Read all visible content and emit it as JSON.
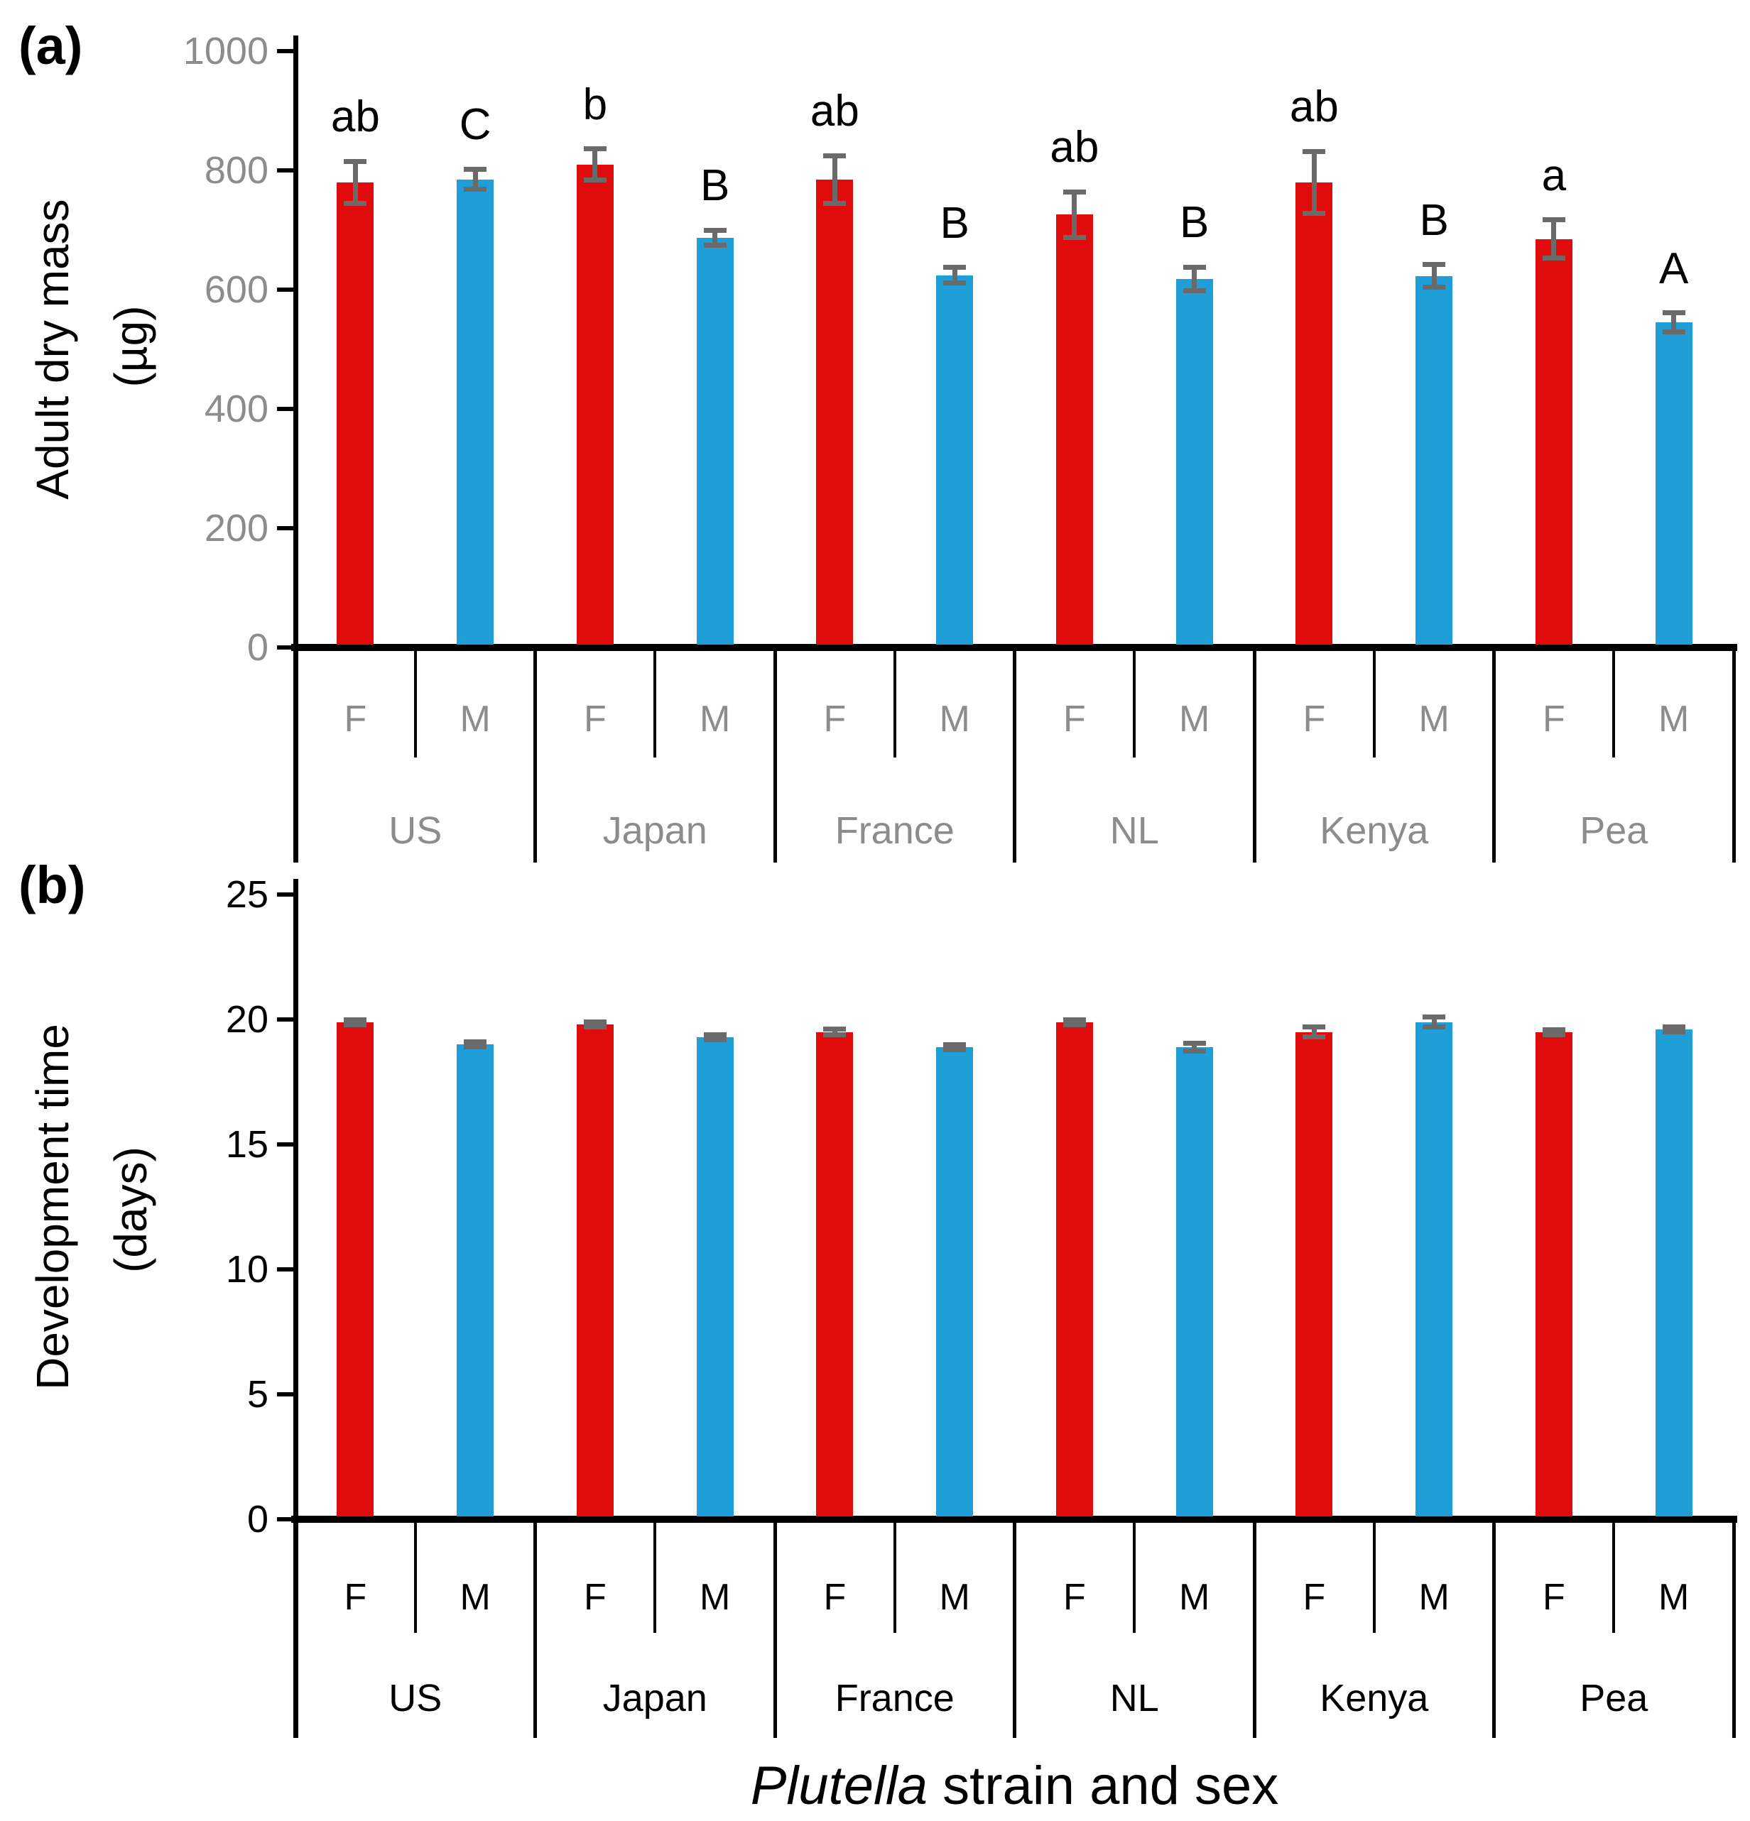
{
  "figure": {
    "x_axis_title": {
      "italic_part": "Plutella",
      "regular_part": " strain and sex"
    },
    "sex_labels": [
      "F",
      "M"
    ],
    "strains": [
      "US",
      "Japan",
      "France",
      "NL",
      "Kenya",
      "Pea"
    ],
    "colors": {
      "female_bar": "#e00c0c",
      "male_bar": "#1f9ed8",
      "error_bar": "#6a6a6a",
      "panel_a_text": "#8c8c8c",
      "panel_b_text": "#000000",
      "axis": "#000000"
    }
  },
  "chart_data": [
    {
      "id": "a",
      "type": "bar",
      "panel_label": "(a)",
      "ylabel_lines": [
        "Adult dry mass",
        "(µg)"
      ],
      "ylim": [
        0,
        1000
      ],
      "yticks": [
        0,
        200,
        400,
        600,
        800,
        1000
      ],
      "grid": false,
      "legend": "none",
      "groups": [
        "US",
        "Japan",
        "France",
        "NL",
        "Kenya",
        "Pea"
      ],
      "bars": [
        {
          "strain": "US",
          "sex": "F",
          "value": 780,
          "error": 35,
          "letter": "ab"
        },
        {
          "strain": "US",
          "sex": "M",
          "value": 785,
          "error": 17,
          "letter": "C"
        },
        {
          "strain": "Japan",
          "sex": "F",
          "value": 810,
          "error": 26,
          "letter": "b"
        },
        {
          "strain": "Japan",
          "sex": "M",
          "value": 687,
          "error": 13,
          "letter": "B"
        },
        {
          "strain": "France",
          "sex": "F",
          "value": 785,
          "error": 40,
          "letter": "ab"
        },
        {
          "strain": "France",
          "sex": "M",
          "value": 624,
          "error": 13,
          "letter": "B"
        },
        {
          "strain": "NL",
          "sex": "F",
          "value": 726,
          "error": 38,
          "letter": "ab"
        },
        {
          "strain": "NL",
          "sex": "M",
          "value": 618,
          "error": 20,
          "letter": "B"
        },
        {
          "strain": "Kenya",
          "sex": "F",
          "value": 780,
          "error": 52,
          "letter": "ab"
        },
        {
          "strain": "Kenya",
          "sex": "M",
          "value": 623,
          "error": 19,
          "letter": "B"
        },
        {
          "strain": "Pea",
          "sex": "F",
          "value": 685,
          "error": 32,
          "letter": "a"
        },
        {
          "strain": "Pea",
          "sex": "M",
          "value": 545,
          "error": 16,
          "letter": "A"
        }
      ]
    },
    {
      "id": "b",
      "type": "bar",
      "panel_label": "(b)",
      "ylabel_lines": [
        "Development time",
        "(days)"
      ],
      "ylim": [
        0,
        25
      ],
      "yticks": [
        0,
        5,
        10,
        15,
        20,
        25
      ],
      "grid": false,
      "legend": "none",
      "groups": [
        "US",
        "Japan",
        "France",
        "NL",
        "Kenya",
        "Pea"
      ],
      "bars": [
        {
          "strain": "US",
          "sex": "F",
          "value": 19.9,
          "error": 0.1
        },
        {
          "strain": "US",
          "sex": "M",
          "value": 19.0,
          "error": 0.1
        },
        {
          "strain": "Japan",
          "sex": "F",
          "value": 19.8,
          "error": 0.1
        },
        {
          "strain": "Japan",
          "sex": "M",
          "value": 19.3,
          "error": 0.1
        },
        {
          "strain": "France",
          "sex": "F",
          "value": 19.5,
          "error": 0.12
        },
        {
          "strain": "France",
          "sex": "M",
          "value": 18.9,
          "error": 0.1
        },
        {
          "strain": "NL",
          "sex": "F",
          "value": 19.9,
          "error": 0.1
        },
        {
          "strain": "NL",
          "sex": "M",
          "value": 18.9,
          "error": 0.15
        },
        {
          "strain": "Kenya",
          "sex": "F",
          "value": 19.5,
          "error": 0.2
        },
        {
          "strain": "Kenya",
          "sex": "M",
          "value": 19.9,
          "error": 0.2
        },
        {
          "strain": "Pea",
          "sex": "F",
          "value": 19.5,
          "error": 0.1
        },
        {
          "strain": "Pea",
          "sex": "M",
          "value": 19.6,
          "error": 0.1
        }
      ]
    }
  ]
}
